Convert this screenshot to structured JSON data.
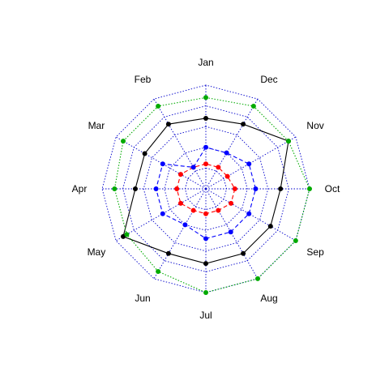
{
  "chart_data": {
    "type": "radar",
    "categories": [
      "Jan",
      "Feb",
      "Mar",
      "Apr",
      "May",
      "Jun",
      "Jul",
      "Aug",
      "Sep",
      "Oct",
      "Nov",
      "Dec"
    ],
    "rlim": [
      0,
      5
    ],
    "gridlines": [
      1,
      2,
      3,
      4,
      5
    ],
    "grid": true,
    "grid_style": "dotted",
    "grid_color": "#0000cc",
    "legend": "none",
    "series": [
      {
        "color": "#ff0000",
        "line_style": "dashed",
        "values": [
          1.2,
          1.2,
          1.4,
          1.4,
          1.4,
          1.2,
          1.2,
          1.2,
          1.4,
          1.4,
          1.2,
          1.2
        ]
      },
      {
        "color": "#0000ff",
        "line_style": "dashed",
        "values": [
          2.0,
          1.2,
          2.4,
          2.4,
          2.4,
          2.0,
          2.4,
          2.4,
          2.4,
          2.4,
          2.4,
          2.0
        ]
      },
      {
        "color": "#000000",
        "line_style": "solid",
        "values": [
          3.4,
          3.6,
          3.4,
          3.4,
          4.6,
          3.6,
          3.6,
          3.6,
          3.6,
          3.6,
          4.6,
          3.6
        ]
      },
      {
        "color": "#00aa00",
        "line_style": "dotted",
        "values": [
          4.4,
          4.6,
          4.6,
          4.4,
          4.4,
          4.6,
          5.0,
          5.0,
          5.0,
          5.0,
          4.6,
          4.6
        ]
      }
    ]
  }
}
